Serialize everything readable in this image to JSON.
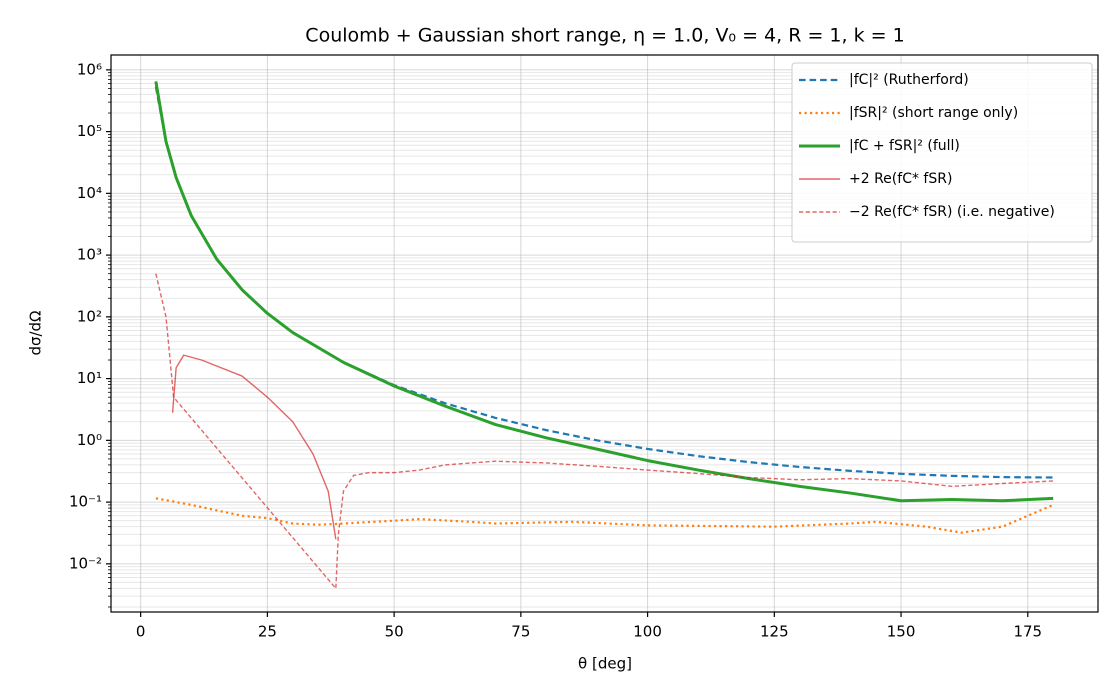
{
  "chart_data": {
    "type": "line",
    "title": "Coulomb + Gaussian short range,  η = 1.0, V₀ = 4, R = 1, k = 1",
    "x_label": "θ  [deg]",
    "y_label": "dσ/dΩ",
    "xlim": [
      -5.85,
      188.85
    ],
    "ylim": [
      0.00166,
      1740000
    ],
    "log_y": true,
    "grid": true,
    "minor_grid": true,
    "legend": "upper right",
    "xticks": [
      0,
      25,
      50,
      75,
      100,
      125,
      150,
      175
    ],
    "yticks": [
      {
        "value": 0.01,
        "label": "10⁻²"
      },
      {
        "value": 0.1,
        "label": "10⁻¹"
      },
      {
        "value": 1,
        "label": "10⁰"
      },
      {
        "value": 10,
        "label": "10¹"
      },
      {
        "value": 100,
        "label": "10²"
      },
      {
        "value": 1000,
        "label": "10³"
      },
      {
        "value": 10000,
        "label": "10⁴"
      },
      {
        "value": 100000,
        "label": "10⁵"
      },
      {
        "value": 1000000,
        "label": "10⁶"
      }
    ],
    "series": [
      {
        "name": "|fC|² (Rutherford)",
        "color": "#1f77b4",
        "linestyle": "dashed",
        "linewidth": 2.2,
        "opacity": 1,
        "x": [
          3,
          5,
          7,
          10,
          15,
          20,
          25,
          30,
          40,
          50,
          60,
          70,
          80,
          90,
          100,
          110,
          120,
          130,
          140,
          150,
          160,
          170,
          180
        ],
        "values": [
          532500,
          69060,
          18000,
          4333,
          861,
          275,
          113.9,
          55.7,
          18.3,
          7.84,
          4,
          2.31,
          1.464,
          1.0,
          0.726,
          0.555,
          0.444,
          0.3705,
          0.3206,
          0.2872,
          0.2658,
          0.2538,
          0.25
        ]
      },
      {
        "name": "|fSR|² (short range only)",
        "color": "#ff7f0e",
        "linestyle": "dotted",
        "linewidth": 2.2,
        "opacity": 1,
        "x": [
          3,
          10,
          20,
          25,
          30,
          35,
          40,
          50,
          55,
          65,
          70,
          85,
          100,
          125,
          140,
          145,
          155,
          162,
          170,
          180
        ],
        "values": [
          0.115,
          0.09,
          0.06,
          0.055,
          0.045,
          0.043,
          0.045,
          0.05,
          0.053,
          0.048,
          0.045,
          0.048,
          0.042,
          0.04,
          0.045,
          0.048,
          0.04,
          0.032,
          0.04,
          0.09
        ]
      },
      {
        "name": "|fC + fSR|² (full)",
        "color": "#2ca02c",
        "linestyle": "solid",
        "linewidth": 3,
        "opacity": 1,
        "x": [
          3,
          5,
          7,
          10,
          15,
          20,
          25,
          30,
          40,
          50,
          60,
          70,
          80,
          90,
          100,
          110,
          120,
          130,
          140,
          150,
          160,
          170,
          180
        ],
        "values": [
          650000,
          69060,
          18000,
          4333,
          861,
          275,
          113.9,
          55.7,
          18.3,
          7.6,
          3.6,
          1.8,
          1.1,
          0.72,
          0.47,
          0.33,
          0.24,
          0.18,
          0.14,
          0.105,
          0.11,
          0.105,
          0.115
        ]
      },
      {
        "name": "+2 Re(fC* fSR)",
        "color": "#d62728",
        "linestyle": "solid",
        "linewidth": 1.4,
        "opacity": 0.7,
        "x": [
          6.3,
          7,
          8.5,
          12,
          20,
          25,
          30,
          34,
          37,
          38.5
        ],
        "values": [
          2.8,
          15,
          24,
          20,
          11,
          5,
          2,
          0.6,
          0.15,
          0.025
        ]
      },
      {
        "name": "−2 Re(fC* fSR) (i.e. negative)",
        "color": "#d62728",
        "linestyle": "dashed",
        "linewidth": 1.4,
        "opacity": 0.7,
        "x": [
          3,
          5,
          6.5,
          38.5,
          39,
          40,
          42,
          45,
          50,
          55,
          60,
          70,
          80,
          90,
          100,
          110,
          120,
          130,
          140,
          150,
          160,
          170,
          180
        ],
        "values": [
          500,
          100,
          5,
          0.004,
          0.03,
          0.15,
          0.27,
          0.3,
          0.3,
          0.33,
          0.4,
          0.46,
          0.43,
          0.38,
          0.33,
          0.29,
          0.25,
          0.23,
          0.24,
          0.22,
          0.18,
          0.2,
          0.22
        ]
      }
    ]
  }
}
